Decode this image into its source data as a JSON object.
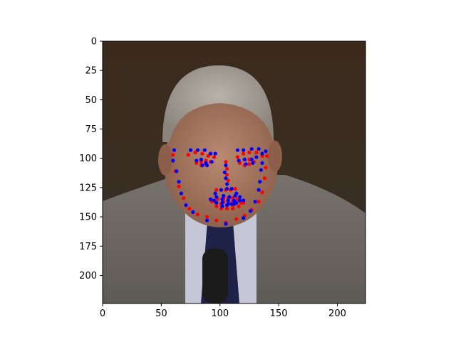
{
  "chart_data": {
    "type": "scatter",
    "image": {
      "description_scene": "photograph",
      "width": 224,
      "height": 224
    },
    "xlim": [
      0,
      224
    ],
    "ylim": [
      224,
      0
    ],
    "y_inverted": true,
    "grid": false,
    "legend": "none",
    "xticks": [
      0,
      50,
      100,
      150,
      200
    ],
    "yticks": [
      0,
      25,
      50,
      75,
      100,
      125,
      150,
      175,
      200
    ],
    "series": [
      {
        "color": "#ff0000",
        "points": [
          [
            60,
            97
          ],
          [
            62,
            111
          ],
          [
            65,
            124
          ],
          [
            69,
            134
          ],
          [
            74,
            143
          ],
          [
            81,
            148
          ],
          [
            89,
            150
          ],
          [
            97,
            153
          ],
          [
            105,
            155
          ],
          [
            114,
            152
          ],
          [
            121,
            149
          ],
          [
            127,
            144
          ],
          [
            133,
            137
          ],
          [
            136,
            129
          ],
          [
            138,
            117
          ],
          [
            139,
            108
          ],
          [
            140,
            98
          ],
          [
            73,
            97
          ],
          [
            79,
            95
          ],
          [
            85,
            96
          ],
          [
            90,
            98
          ],
          [
            95,
            99
          ],
          [
            115,
            99
          ],
          [
            120,
            96
          ],
          [
            125,
            95
          ],
          [
            131,
            95
          ],
          [
            136,
            98
          ],
          [
            105,
            103
          ],
          [
            106,
            109
          ],
          [
            106,
            114
          ],
          [
            107,
            119
          ],
          [
            97,
            127
          ],
          [
            101,
            127
          ],
          [
            105,
            127
          ],
          [
            109,
            127
          ],
          [
            113,
            126
          ],
          [
            80,
            104
          ],
          [
            84,
            103
          ],
          [
            88,
            102
          ],
          [
            92,
            103
          ],
          [
            88,
            105
          ],
          [
            84,
            106
          ],
          [
            117,
            104
          ],
          [
            121,
            101
          ],
          [
            125,
            101
          ],
          [
            129,
            103
          ],
          [
            125,
            105
          ],
          [
            121,
            106
          ],
          [
            93,
            137
          ],
          [
            98,
            135
          ],
          [
            103,
            134
          ],
          [
            107,
            134
          ],
          [
            111,
            134
          ],
          [
            115,
            135
          ],
          [
            120,
            138
          ],
          [
            116,
            141
          ],
          [
            111,
            143
          ],
          [
            106,
            143
          ],
          [
            101,
            143
          ],
          [
            97,
            141
          ],
          [
            96,
            137
          ],
          [
            103,
            137
          ],
          [
            107,
            137
          ],
          [
            111,
            137
          ],
          [
            118,
            138
          ],
          [
            111,
            140
          ],
          [
            106,
            140
          ],
          [
            101,
            139
          ]
        ]
      },
      {
        "color": "#0000ff",
        "points": [
          [
            61,
            93
          ],
          [
            60,
            102
          ],
          [
            63,
            111
          ],
          [
            65,
            120
          ],
          [
            67,
            130
          ],
          [
            71,
            140
          ],
          [
            77,
            146
          ],
          [
            89,
            153
          ],
          [
            105,
            156
          ],
          [
            120,
            151
          ],
          [
            126,
            145
          ],
          [
            130,
            137
          ],
          [
            133,
            127
          ],
          [
            134,
            120
          ],
          [
            135,
            110
          ],
          [
            136,
            104
          ],
          [
            139,
            94
          ],
          [
            75,
            93
          ],
          [
            81,
            93
          ],
          [
            87,
            93
          ],
          [
            92,
            96
          ],
          [
            96,
            96
          ],
          [
            115,
            93
          ],
          [
            120,
            93
          ],
          [
            127,
            92
          ],
          [
            133,
            92
          ],
          [
            136,
            96
          ],
          [
            105,
            106
          ],
          [
            104,
            112
          ],
          [
            105,
            117
          ],
          [
            106,
            122
          ],
          [
            96,
            130
          ],
          [
            101,
            127
          ],
          [
            106,
            126
          ],
          [
            110,
            126
          ],
          [
            114,
            130
          ],
          [
            80,
            102
          ],
          [
            84,
            101
          ],
          [
            88,
            104
          ],
          [
            93,
            103
          ],
          [
            89,
            106
          ],
          [
            85,
            106
          ],
          [
            116,
            102
          ],
          [
            121,
            101
          ],
          [
            127,
            101
          ],
          [
            131,
            99
          ],
          [
            128,
            104
          ],
          [
            122,
            105
          ],
          [
            92,
            135
          ],
          [
            97,
            133
          ],
          [
            103,
            132
          ],
          [
            108,
            133
          ],
          [
            113,
            132
          ],
          [
            117,
            133
          ],
          [
            120,
            136
          ],
          [
            114,
            138
          ],
          [
            110,
            139
          ],
          [
            106,
            140
          ],
          [
            102,
            141
          ],
          [
            97,
            138
          ],
          [
            95,
            136
          ],
          [
            102,
            135
          ],
          [
            107,
            136
          ],
          [
            112,
            136
          ],
          [
            117,
            136
          ],
          [
            112,
            139
          ],
          [
            107,
            139
          ],
          [
            102,
            138
          ]
        ]
      }
    ]
  }
}
